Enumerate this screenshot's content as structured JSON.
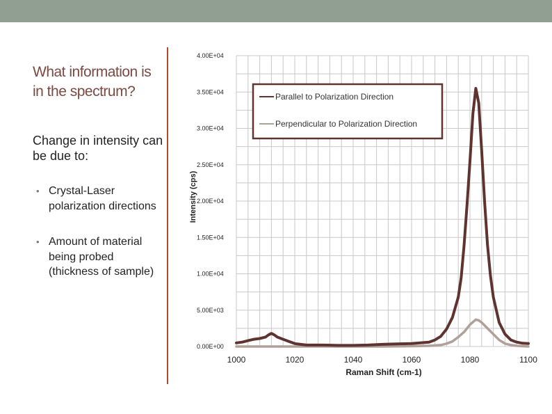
{
  "slide": {
    "title": "What information is in the spectrum?",
    "subtitle": "Change in intensity can be due to:",
    "bullets": [
      "Crystal-Laser polarization directions",
      "Amount of material being probed (thickness of sample)"
    ]
  },
  "colors": {
    "topbar": "#919e92",
    "divider": "#b5472d",
    "title": "#7a4a42"
  },
  "chart_data": {
    "type": "line",
    "xlabel": "Raman Shift (cm-1)",
    "ylabel": "Intensity (cps)",
    "xlim": [
      1000,
      1100
    ],
    "ylim": [
      0,
      40000
    ],
    "x_ticks": [
      1000,
      1020,
      1040,
      1060,
      1080,
      1100
    ],
    "x_tick_labels": [
      "1000",
      "1020",
      "1040",
      "1060",
      "1080",
      "1100"
    ],
    "y_ticks": [
      0,
      5000,
      10000,
      15000,
      20000,
      25000,
      30000,
      35000,
      40000
    ],
    "y_tick_labels": [
      "0.00E+00",
      "5.00E+03",
      "1.00E+04",
      "1.50E+04",
      "2.00E+04",
      "2.50E+04",
      "3.00E+04",
      "3.50E+04",
      "4.00E+04"
    ],
    "grid": true,
    "legend_position": "top-right",
    "series": [
      {
        "name": "Parallel to Polarization Direction",
        "color": "#5e3330",
        "x": [
          1000,
          1002,
          1004,
          1006,
          1008,
          1010,
          1011,
          1012,
          1013,
          1014,
          1016,
          1018,
          1020,
          1022,
          1024,
          1026,
          1030,
          1035,
          1040,
          1045,
          1050,
          1055,
          1060,
          1063,
          1066,
          1068,
          1070,
          1072,
          1074,
          1076,
          1077,
          1078,
          1079,
          1080,
          1081,
          1082,
          1083,
          1084,
          1085,
          1086,
          1087,
          1088,
          1090,
          1092,
          1094,
          1096,
          1098,
          1100
        ],
        "y": [
          500,
          600,
          800,
          1000,
          1100,
          1300,
          1600,
          1800,
          1600,
          1300,
          1000,
          700,
          400,
          300,
          200,
          200,
          200,
          150,
          150,
          200,
          300,
          350,
          400,
          500,
          600,
          900,
          1400,
          2400,
          4000,
          6800,
          9500,
          14000,
          19500,
          25500,
          32000,
          35500,
          33500,
          27000,
          20000,
          14000,
          9800,
          6800,
          3300,
          1700,
          900,
          600,
          450,
          400
        ]
      },
      {
        "name": "Perpendicular to Polarization Direction",
        "color": "#b0a09a",
        "x": [
          1000,
          1010,
          1020,
          1030,
          1040,
          1050,
          1060,
          1066,
          1070,
          1072,
          1074,
          1076,
          1078,
          1080,
          1082,
          1083,
          1084,
          1086,
          1088,
          1090,
          1092,
          1094,
          1096,
          1100
        ],
        "y": [
          0,
          0,
          0,
          0,
          0,
          0,
          50,
          100,
          200,
          400,
          700,
          1300,
          2000,
          3000,
          3700,
          3600,
          3300,
          2500,
          1700,
          900,
          400,
          200,
          100,
          0
        ]
      }
    ]
  }
}
